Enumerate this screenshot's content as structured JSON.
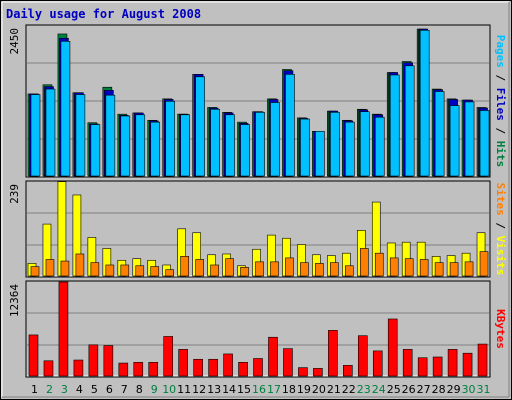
{
  "chart_data": {
    "type": "bar",
    "title": "Daily usage for August 2008",
    "categories": [
      "1",
      "2",
      "3",
      "4",
      "5",
      "6",
      "7",
      "8",
      "9",
      "10",
      "11",
      "12",
      "13",
      "14",
      "15",
      "16",
      "17",
      "18",
      "19",
      "20",
      "21",
      "22",
      "23",
      "24",
      "25",
      "26",
      "27",
      "28",
      "29",
      "30",
      "31"
    ],
    "weekend_days": [
      "2",
      "3",
      "9",
      "10",
      "16",
      "17",
      "23",
      "24",
      "30",
      "31"
    ],
    "colors": {
      "hits": "#008040",
      "files": "#0000c0",
      "pages": "#00c0ff",
      "visits": "#ffff00",
      "sites": "#ff8000",
      "kbytes": "#ff0000",
      "title": "#0000c0",
      "weekday": "#000000",
      "weekend": "#008040"
    },
    "panels": [
      {
        "name": "hits-files-pages",
        "ymax_label": "2450",
        "ylim": [
          0,
          2450
        ],
        "label_parts": [
          {
            "text": "Pages",
            "color": "#00c0ff"
          },
          {
            "text": " / ",
            "color": "#000000"
          },
          {
            "text": "Files",
            "color": "#0000c0"
          },
          {
            "text": " / ",
            "color": "#000000"
          },
          {
            "text": "Hits",
            "color": "#008040"
          }
        ],
        "series": [
          {
            "name": "Hits",
            "color": "#008040",
            "values": [
              1340,
              1490,
              2320,
              1360,
              870,
              1450,
              1010,
              1030,
              910,
              1260,
              1010,
              1660,
              1120,
              1040,
              880,
              1050,
              1260,
              1740,
              950,
              730,
              1060,
              910,
              1090,
              1010,
              1690,
              1870,
              2400,
              1420,
              1260,
              1240,
              1120
            ]
          },
          {
            "name": "Files",
            "color": "#0000c0",
            "values": [
              1340,
              1460,
              2250,
              1360,
              850,
              1400,
              990,
              1030,
              900,
              1250,
              1010,
              1660,
              1110,
              1030,
              860,
              1050,
              1250,
              1720,
              940,
              730,
              1060,
              900,
              1080,
              1000,
              1690,
              1850,
              2400,
              1410,
              1250,
              1240,
              1110
            ]
          },
          {
            "name": "Pages",
            "color": "#00c0ff",
            "values": [
              1330,
              1420,
              2200,
              1330,
              840,
              1320,
              980,
              1000,
              880,
              1220,
              1000,
              1620,
              1090,
              1000,
              840,
              1040,
              1200,
              1660,
              930,
              730,
              1040,
              880,
              1050,
              960,
              1650,
              1800,
              2380,
              1380,
              1150,
              1210,
              1070
            ]
          }
        ]
      },
      {
        "name": "visits-sites",
        "ymax_label": "239",
        "ylim": [
          0,
          239
        ],
        "label_parts": [
          {
            "text": "Sites",
            "color": "#ff8000"
          },
          {
            "text": " / ",
            "color": "#000000"
          },
          {
            "text": "Visits",
            "color": "#ffff00"
          }
        ],
        "series": [
          {
            "name": "Visits",
            "color": "#ffff00",
            "values": [
              32,
              132,
              240,
              206,
              98,
              70,
              40,
              44,
              40,
              28,
              120,
              110,
              54,
              56,
              26,
              68,
              104,
              96,
              80,
              54,
              52,
              58,
              116,
              188,
              84,
              86,
              86,
              50,
              52,
              58,
              110
            ]
          },
          {
            "name": "Sites",
            "color": "#ff8000",
            "values": [
              24,
              42,
              38,
              56,
              34,
              28,
              28,
              26,
              24,
              16,
              50,
              42,
              28,
              44,
              22,
              36,
              36,
              46,
              34,
              32,
              34,
              26,
              70,
              58,
              46,
              44,
              42,
              34,
              34,
              36,
              62
            ]
          }
        ]
      },
      {
        "name": "kbytes",
        "ymax_label": "12364",
        "ylim": [
          0,
          12364
        ],
        "label_parts": [
          {
            "text": "KBytes",
            "color": "#ff0000"
          }
        ],
        "series": [
          {
            "name": "KBytes",
            "color": "#ff0000",
            "values": [
              5400,
              2000,
              12364,
              2100,
              4100,
              4000,
              1700,
              1800,
              1800,
              5200,
              3500,
              2200,
              2200,
              2900,
              1800,
              2300,
              5100,
              3600,
              1100,
              1000,
              6000,
              1400,
              5300,
              3300,
              7500,
              3500,
              2400,
              2500,
              3500,
              3000,
              4200
            ]
          }
        ]
      }
    ]
  }
}
